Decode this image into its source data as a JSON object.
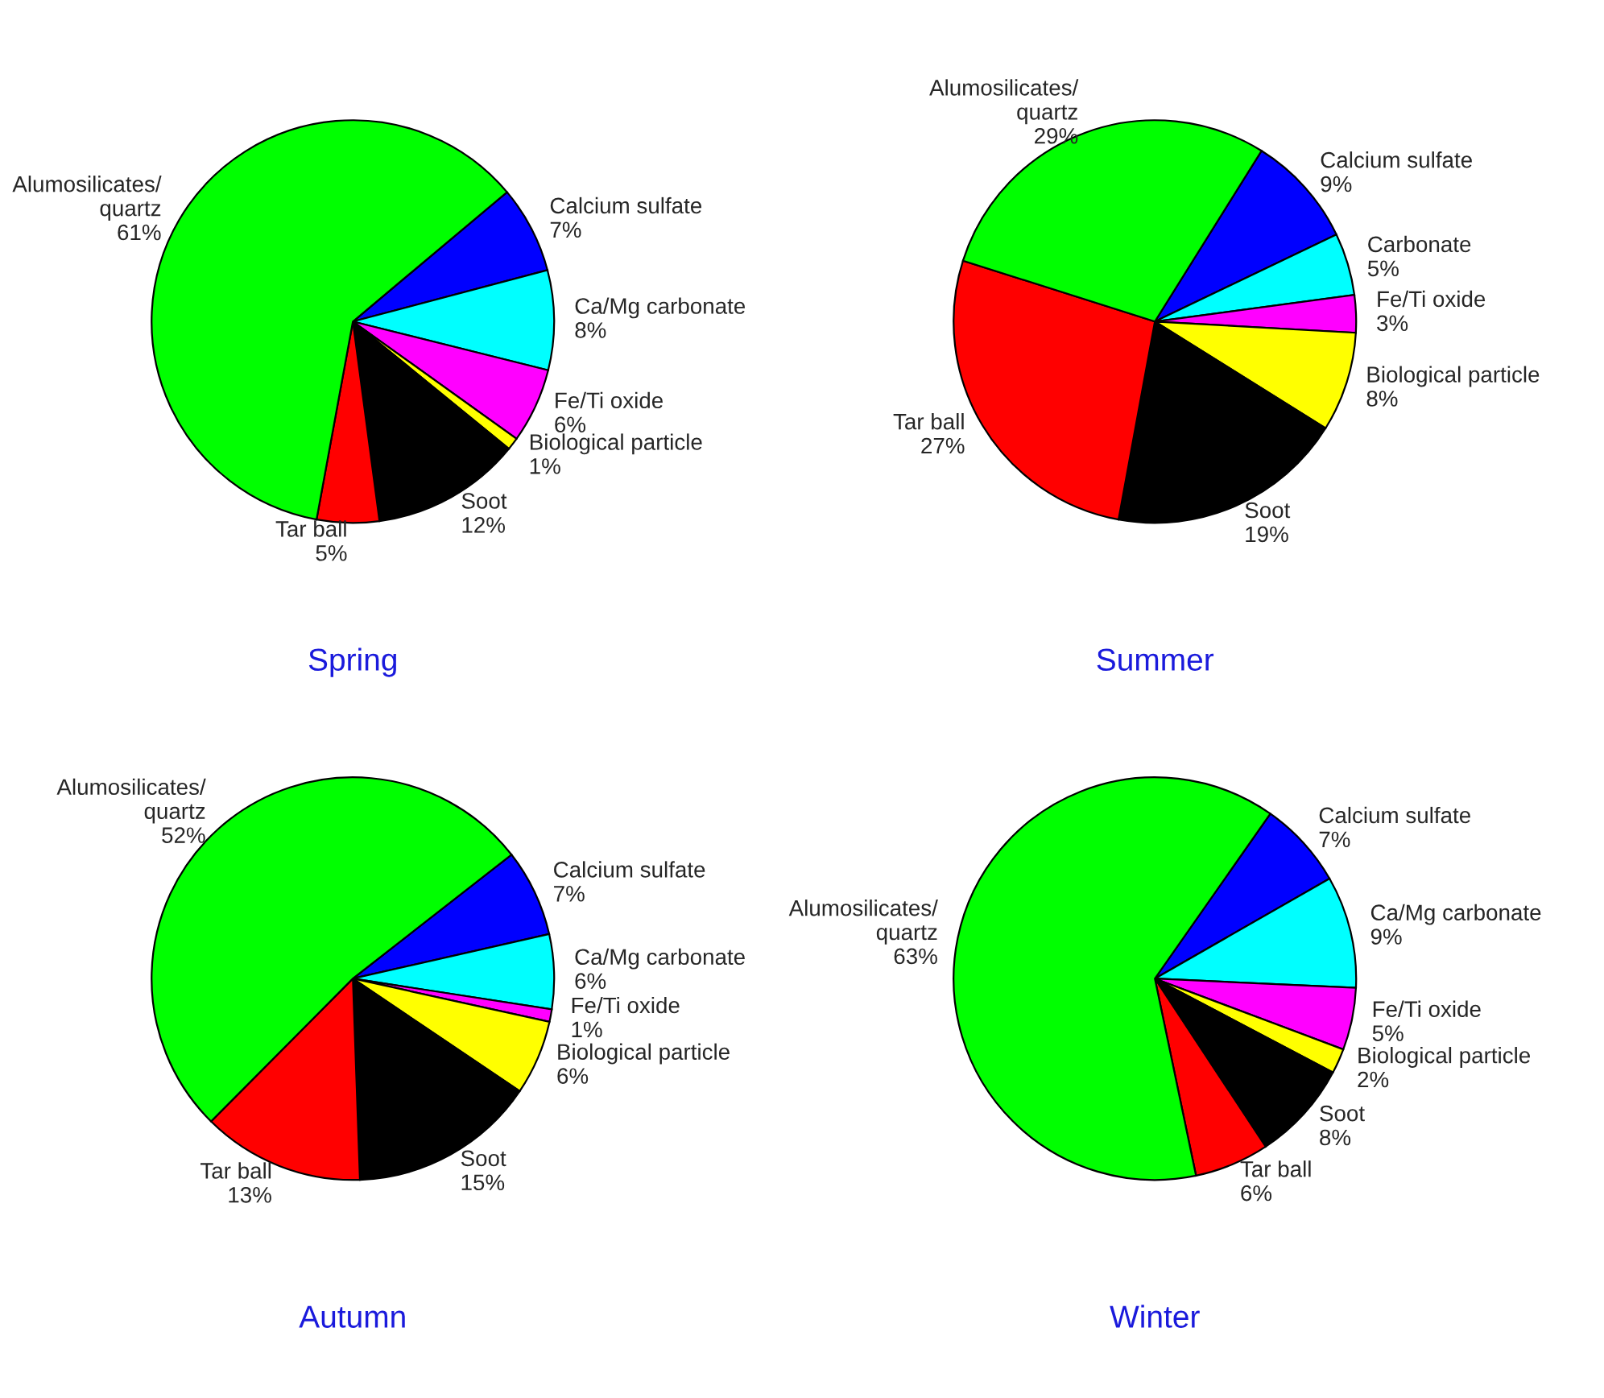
{
  "chart_data": [
    {
      "type": "pie",
      "title": "Spring",
      "categories": [
        "Calcium sulfate",
        "Ca/Mg carbonate",
        "Fe/Ti oxide",
        "Biological particle",
        "Soot",
        "Tar ball",
        "Alumosilicates/quartz"
      ],
      "values": [
        7,
        8,
        6,
        1,
        12,
        5,
        61
      ],
      "value_labels": [
        "7%",
        "8%",
        "6%",
        "1%",
        "12%",
        "5%",
        "61%"
      ],
      "colors": [
        "#0000ff",
        "#00ffff",
        "#ff00ff",
        "#ffff00",
        "#000000",
        "#ff0000",
        "#00ff00"
      ],
      "data_labels": true
    },
    {
      "type": "pie",
      "title": "Summer",
      "categories": [
        "Calcium sulfate",
        "Carbonate",
        "Fe/Ti oxide",
        "Biological particle",
        "Soot",
        "Tar ball",
        "Alumosilicates/quartz"
      ],
      "values": [
        9,
        5,
        3,
        8,
        19,
        27,
        29
      ],
      "value_labels": [
        "9%",
        "5%",
        "3%",
        "8%",
        "19%",
        "27%",
        "29%"
      ],
      "colors": [
        "#0000ff",
        "#00ffff",
        "#ff00ff",
        "#ffff00",
        "#000000",
        "#ff0000",
        "#00ff00"
      ],
      "data_labels": true
    },
    {
      "type": "pie",
      "title": "Autumn",
      "categories": [
        "Calcium sulfate",
        "Ca/Mg carbonate",
        "Fe/Ti oxide",
        "Biological particle",
        "Soot",
        "Tar ball",
        "Alumosilicates/quartz"
      ],
      "values": [
        7,
        6,
        1,
        6,
        15,
        13,
        52
      ],
      "value_labels": [
        "7%",
        "6%",
        "1%",
        "6%",
        "15%",
        "13%",
        "52%"
      ],
      "colors": [
        "#0000ff",
        "#00ffff",
        "#ff00ff",
        "#ffff00",
        "#000000",
        "#ff0000",
        "#00ff00"
      ],
      "data_labels": true
    },
    {
      "type": "pie",
      "title": "Winter",
      "categories": [
        "Calcium sulfate",
        "Ca/Mg carbonate",
        "Fe/Ti oxide",
        "Biological particle",
        "Soot",
        "Tar ball",
        "Alumosilicates/quartz"
      ],
      "values": [
        7,
        9,
        5,
        2,
        8,
        6,
        63
      ],
      "value_labels": [
        "7%",
        "9%",
        "5%",
        "2%",
        "8%",
        "6%",
        "63%"
      ],
      "colors": [
        "#0000ff",
        "#00ffff",
        "#ff00ff",
        "#ffff00",
        "#000000",
        "#ff0000",
        "#00ff00"
      ],
      "data_labels": true
    }
  ]
}
